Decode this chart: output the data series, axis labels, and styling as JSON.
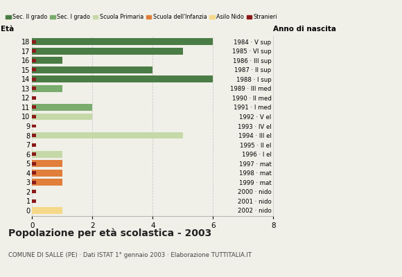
{
  "ages": [
    18,
    17,
    16,
    15,
    14,
    13,
    12,
    11,
    10,
    9,
    8,
    7,
    6,
    5,
    4,
    3,
    2,
    1,
    0
  ],
  "years": [
    "1984 · V sup",
    "1985 · VI sup",
    "1986 · III sup",
    "1987 · II sup",
    "1988 · I sup",
    "1989 · III med",
    "1990 · II med",
    "1991 · I med",
    "1992 · V el",
    "1993 · IV el",
    "1994 · III el",
    "1995 · II el",
    "1996 · I el",
    "1997 · mat",
    "1998 · mat",
    "1999 · mat",
    "2000 · nido",
    "2001 · nido",
    "2002 · nido"
  ],
  "bar_values": [
    6,
    5,
    1,
    4,
    6,
    1,
    0,
    2,
    2,
    0,
    5,
    0,
    1,
    1,
    1,
    1,
    0,
    0,
    1
  ],
  "stranieri": [
    1,
    1,
    1,
    1,
    1,
    1,
    1,
    1,
    1,
    1,
    1,
    1,
    1,
    1,
    1,
    1,
    1,
    1,
    0
  ],
  "categories": {
    "sec2": [
      18,
      17,
      16,
      15,
      14
    ],
    "sec1": [
      13,
      12,
      11
    ],
    "primaria": [
      10,
      9,
      8,
      7,
      6
    ],
    "infanzia": [
      5,
      4,
      3
    ],
    "nido": [
      2,
      1,
      0
    ]
  },
  "colors": {
    "sec2": "#4a7c45",
    "sec1": "#7aac6d",
    "primaria": "#c5d9a8",
    "infanzia": "#e07e3a",
    "nido": "#f5d98a",
    "stranieri": "#8b1a1a"
  },
  "title": "Popolazione per età scolastica - 2003",
  "subtitle": "COMUNE DI SALLE (PE) · Dati ISTAT 1° gennaio 2003 · Elaborazione TUTTITALIA.IT",
  "legend_labels": [
    "Sec. II grado",
    "Sec. I grado",
    "Scuola Primaria",
    "Scuola dell'Infanzia",
    "Asilo Nido",
    "Stranieri"
  ],
  "xlim": [
    0,
    8
  ],
  "xlabel_eta": "Età",
  "xlabel_anno": "Anno di nascita",
  "xticks": [
    0,
    2,
    4,
    6,
    8
  ],
  "background_color": "#f0f0e8",
  "bar_height": 0.72
}
